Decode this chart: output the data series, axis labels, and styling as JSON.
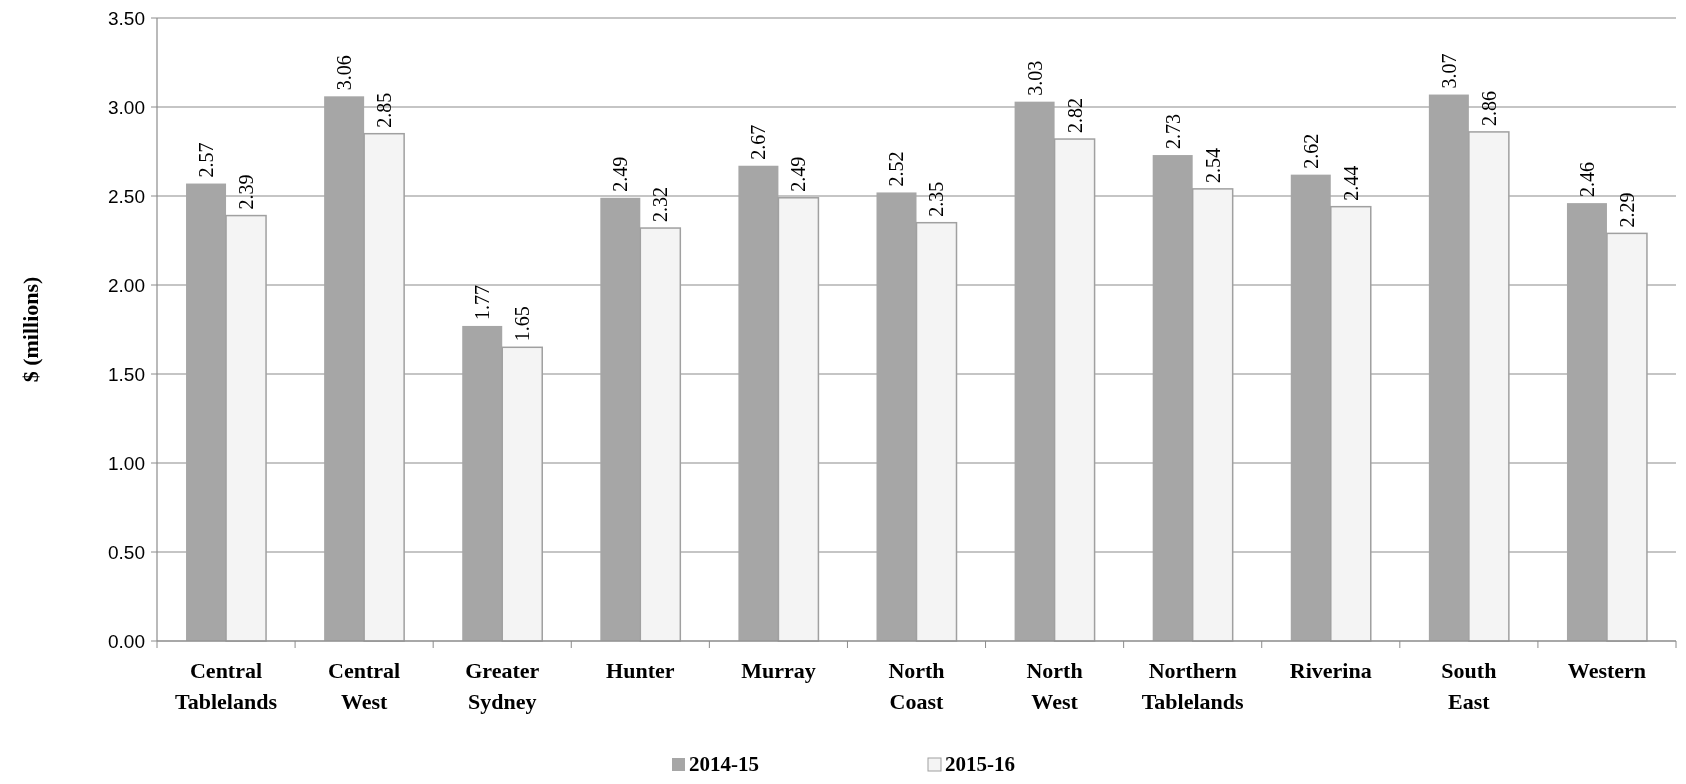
{
  "chart_data": {
    "type": "bar",
    "ylabel": "$ (millions)",
    "categories": [
      "Central Tablelands",
      "Central West",
      "Greater Sydney",
      "Hunter",
      "Murray",
      "North Coast",
      "North West",
      "Northern Tablelands",
      "Riverina",
      "South East",
      "Western"
    ],
    "series": [
      {
        "name": "2014-15",
        "color": "#a6a6a6",
        "values": [
          2.57,
          3.06,
          1.77,
          2.49,
          2.67,
          2.52,
          3.03,
          2.73,
          2.62,
          3.07,
          2.46
        ]
      },
      {
        "name": "2015-16",
        "color": "#f4f4f4",
        "values": [
          2.39,
          2.85,
          1.65,
          2.32,
          2.49,
          2.35,
          2.82,
          2.54,
          2.44,
          2.86,
          2.29
        ]
      }
    ],
    "ylim": [
      0,
      3.5
    ],
    "yticks": [
      {
        "value": 0,
        "label": "0.00"
      },
      {
        "value": 0.5,
        "label": "0.50"
      },
      {
        "value": 1,
        "label": "1.00"
      },
      {
        "value": 1.5,
        "label": "1.50"
      },
      {
        "value": 2,
        "label": "2.00"
      },
      {
        "value": 2.5,
        "label": "2.50"
      },
      {
        "value": 3,
        "label": "3.00"
      },
      {
        "value": 3.5,
        "label": "3.50"
      }
    ],
    "grid": "y",
    "legend": "bottom",
    "data_labels": true
  }
}
